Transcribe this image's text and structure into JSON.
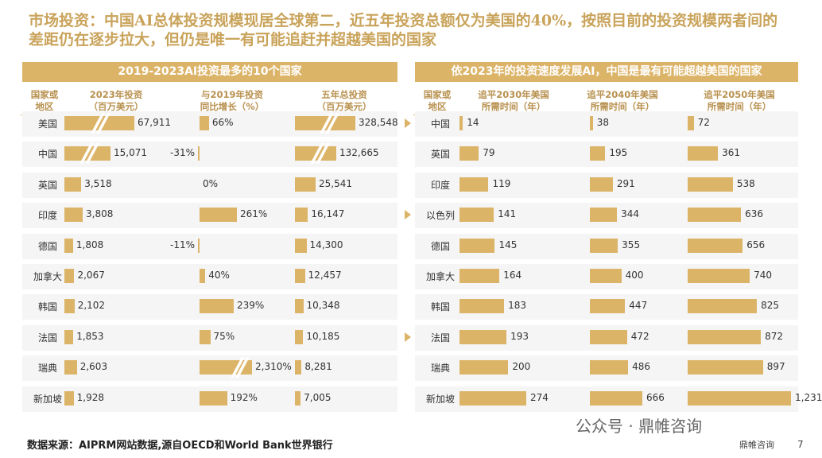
{
  "title": "市场投资：中国AI总体投资规模现居全球第二，近五年投资总额仅为美国的40%，按照目前的投资规模两者间的差距仍在逐步拉大，但仍是唯一有可能追赶并超越美国的国家",
  "left_panel_title": "2019-2023AI投资最多的10个国家",
  "right_panel_title": "依2023年的投资速度发展AI，中国是最有可能超越美国的国家",
  "left_headers": [
    "国家或\n地区",
    "2023年投资\n（百万美元）",
    "与2019年投资\n同比增长（%）",
    "五年总投资\n（百万美元）"
  ],
  "right_headers": [
    "国家或\n地区",
    "追平2030年美国\n所需时间（年）",
    "追平2040年美国\n所需时间（年）",
    "追平2050年美国\n所需时间（年）"
  ],
  "source": "数据来源：AIPRM网站数据,源自OECD和World Bank世界银行",
  "footer_brand": "鼎帷咨询",
  "page_number": "7",
  "wechat_label": "公众号 · 鼎帷咨询",
  "colors": {
    "gold": "#dcb468",
    "title": "#c9a35a"
  },
  "chart_data": [
    {
      "type": "bar",
      "title": "2019-2023AI投资最多的10个国家",
      "categories": [
        "美国",
        "中国",
        "英国",
        "印度",
        "德国",
        "加拿大",
        "韩国",
        "法国",
        "瑞典",
        "新加坡"
      ],
      "series": [
        {
          "name": "2023年投资（百万美元）",
          "values": [
            67911,
            15071,
            3518,
            3808,
            1808,
            2067,
            2102,
            1853,
            2603,
            1928
          ],
          "labels": [
            "67,911",
            "15,071",
            "3,518",
            "3,808",
            "1,808",
            "2,067",
            "2,102",
            "1,853",
            "2,603",
            "1,928"
          ]
        },
        {
          "name": "与2019年投资同比增长（%）",
          "values": [
            66,
            -31,
            0,
            261,
            -11,
            40,
            239,
            75,
            2310,
            192
          ],
          "labels": [
            "66%",
            "-31%",
            "0%",
            "261%",
            "-11%",
            "40%",
            "239%",
            "75%",
            "2,310%",
            "192%"
          ]
        },
        {
          "name": "五年总投资（百万美元）",
          "values": [
            328548,
            132665,
            25541,
            16147,
            14300,
            12457,
            10348,
            10185,
            8281,
            7005
          ],
          "labels": [
            "328,548",
            "132,665",
            "25,541",
            "16,147",
            "14,300",
            "12,457",
            "10,348",
            "10,185",
            "8,281",
            "7,005"
          ]
        }
      ]
    },
    {
      "type": "bar",
      "title": "依2023年的投资速度发展AI，中国是最有可能超越美国的国家",
      "categories": [
        "中国",
        "英国",
        "印度",
        "以色列",
        "德国",
        "加拿大",
        "韩国",
        "法国",
        "瑞典",
        "新加坡"
      ],
      "series": [
        {
          "name": "追平2030年美国所需时间（年）",
          "values": [
            14,
            79,
            119,
            141,
            145,
            164,
            183,
            193,
            200,
            274
          ],
          "labels": [
            "14",
            "79",
            "119",
            "141",
            "145",
            "164",
            "183",
            "193",
            "200",
            "274"
          ]
        },
        {
          "name": "追平2040年美国所需时间（年）",
          "values": [
            38,
            195,
            291,
            344,
            355,
            400,
            447,
            472,
            486,
            666
          ],
          "labels": [
            "38",
            "195",
            "291",
            "344",
            "355",
            "400",
            "447",
            "472",
            "486",
            "666"
          ]
        },
        {
          "name": "追平2050年美国所需时间（年）",
          "values": [
            72,
            361,
            538,
            636,
            656,
            740,
            825,
            872,
            897,
            1231
          ],
          "labels": [
            "72",
            "361",
            "538",
            "636",
            "656",
            "740",
            "825",
            "872",
            "897",
            "1,231"
          ]
        }
      ]
    }
  ]
}
